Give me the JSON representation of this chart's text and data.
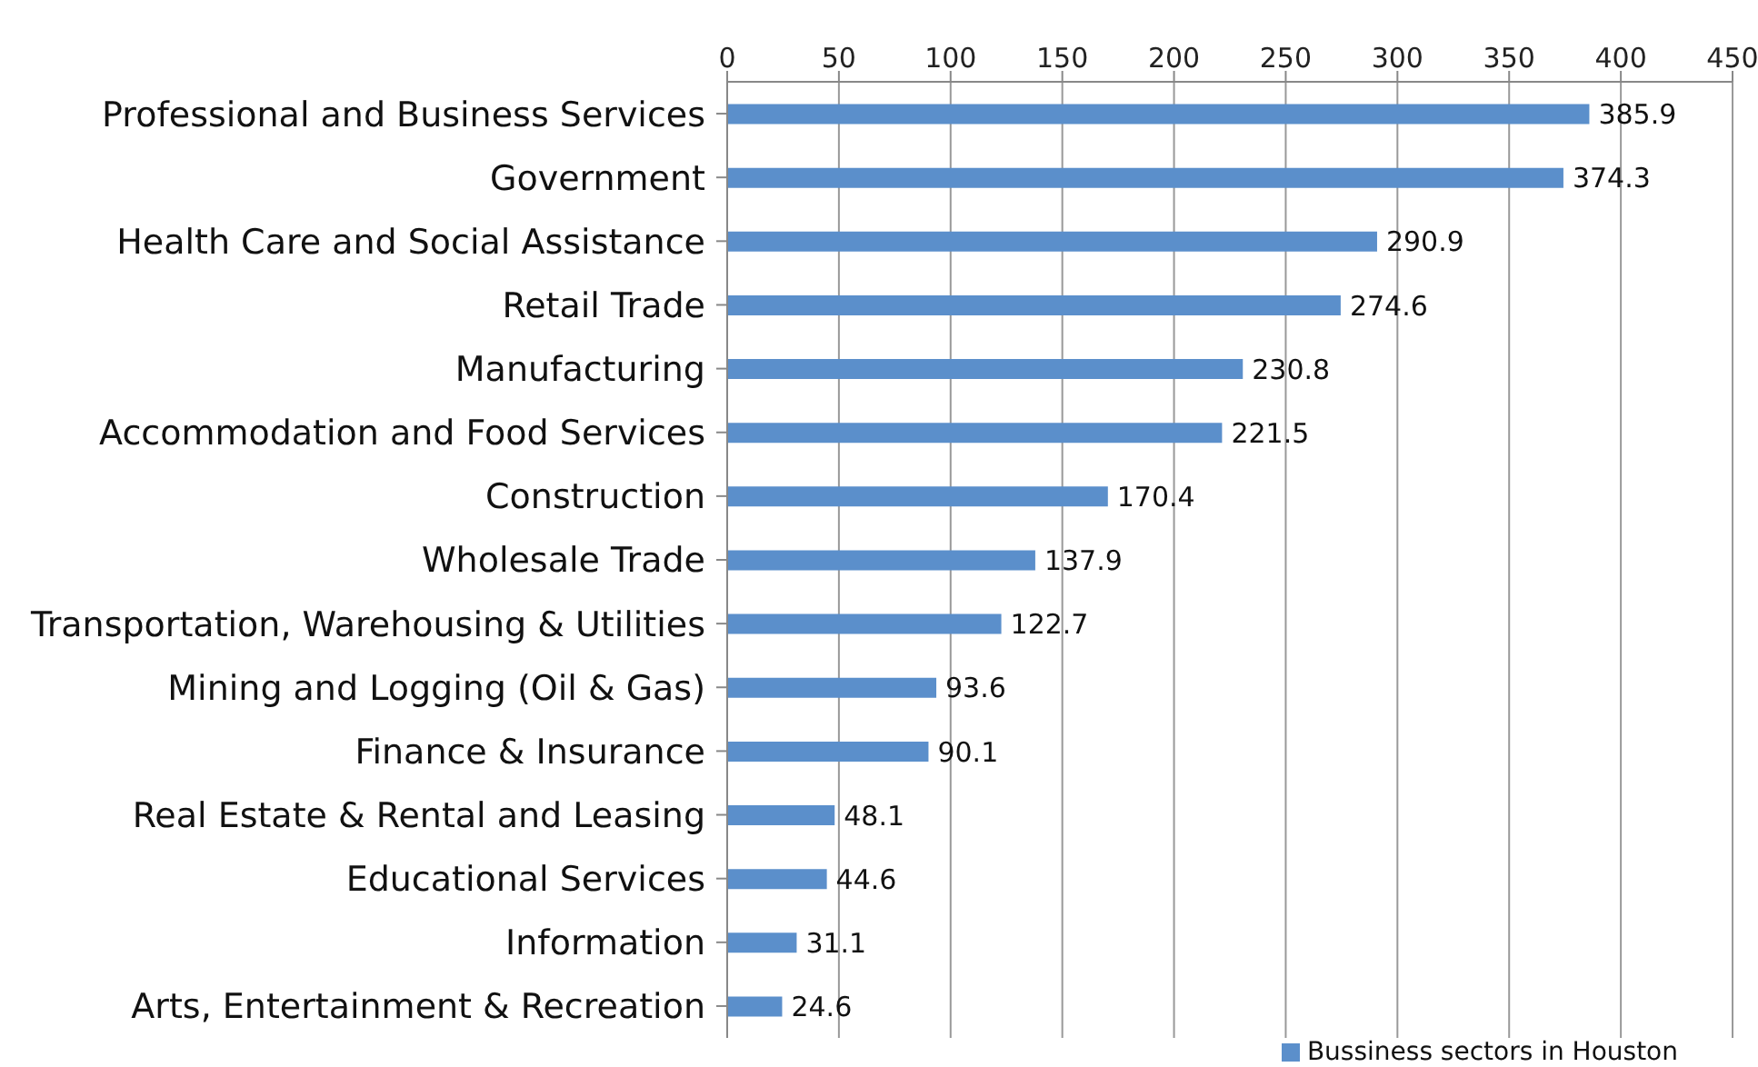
{
  "chart_data": {
    "type": "bar",
    "orientation": "horizontal",
    "categories": [
      "Professional and Business Services",
      "Government",
      "Health Care and Social Assistance",
      "Retail Trade",
      "Manufacturing",
      "Accommodation and Food Services",
      "Construction",
      "Wholesale Trade",
      "Transportation, Warehousing & Utilities",
      "Mining and Logging (Oil & Gas)",
      "Finance & Insurance",
      "Real Estate & Rental and Leasing",
      "Educational Services",
      "Information",
      "Arts, Entertainment & Recreation"
    ],
    "series": [
      {
        "name": "Bussiness sectors in Houston",
        "color": "#5b8fcb",
        "values": [
          385.9,
          374.3,
          290.9,
          274.6,
          230.8,
          221.5,
          170.4,
          137.9,
          122.7,
          93.6,
          90.1,
          48.1,
          44.6,
          31.1,
          24.6
        ]
      }
    ],
    "xlim": [
      0,
      450
    ],
    "xticks": [
      0,
      50,
      100,
      150,
      200,
      250,
      300,
      350,
      400,
      450
    ],
    "grid": "x",
    "legend": "bottom right",
    "data_labels": true
  }
}
